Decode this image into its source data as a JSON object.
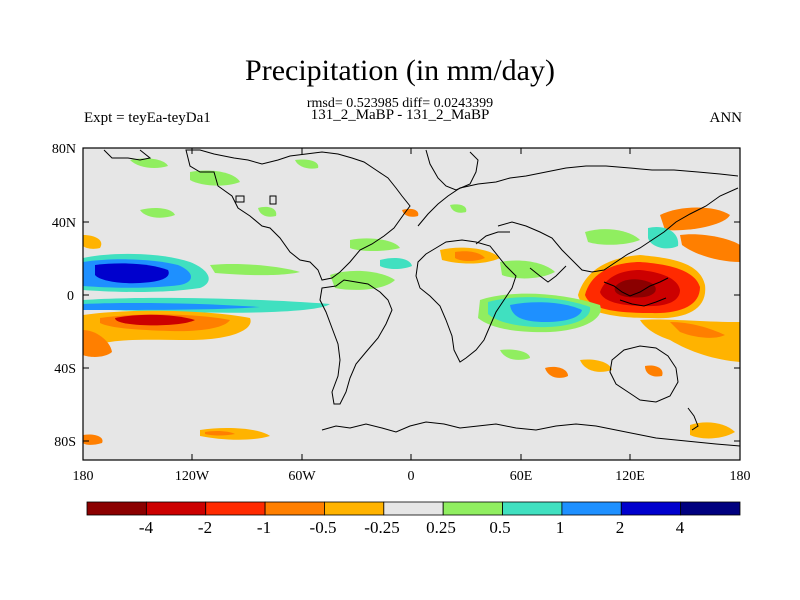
{
  "title": "Precipitation (in mm/day)",
  "stats_line": "rmsd= 0.523985 diff= 0.0243399",
  "experiment_runs": "131_2_MaBP - 131_2_MaBP",
  "experiment_label": "Expt = teyEa-teyDa1",
  "season": "ANN",
  "y_axis_labels": [
    "80N",
    "40N",
    "0",
    "40S",
    "80S"
  ],
  "x_axis_labels": [
    "180",
    "120W",
    "60W",
    "0",
    "60E",
    "120E",
    "180"
  ],
  "colorbar": {
    "labels": [
      "-4",
      "-2",
      "-1",
      "-0.5",
      "-0.25",
      "0.25",
      "0.5",
      "1",
      "2",
      "4"
    ],
    "colors": [
      "#8b0000",
      "#cc0000",
      "#ff2a00",
      "#ff7f00",
      "#ffb300",
      "#e6e6e6",
      "#90ee60",
      "#40e0c0",
      "#1e90ff",
      "#0000cd",
      "#00007f"
    ]
  }
}
